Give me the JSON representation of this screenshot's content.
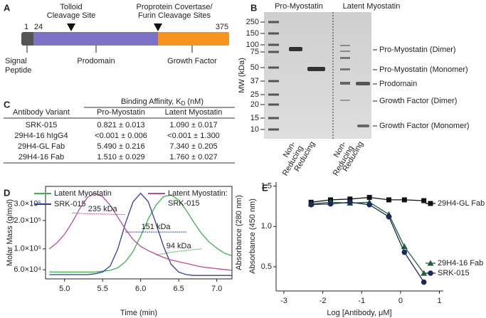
{
  "panel_a": {
    "label": "A",
    "tolloid": [
      "Tolloid",
      "Cleavage Site"
    ],
    "furin": [
      "Proprotein Covertase/",
      "Furin Cleavage Sites"
    ],
    "residues": [
      1,
      24,
      375
    ],
    "domains": [
      [
        "Signal",
        "Peptide"
      ],
      [
        "Prodomain"
      ],
      [
        "Growth Factor"
      ]
    ]
  },
  "panel_b": {
    "label": "B",
    "groups": [
      "Pro-Myostatin",
      "Latent Myostatin"
    ],
    "y_title": "MW (kDa)",
    "ladder": [
      250,
      150,
      100,
      75,
      50,
      37,
      25,
      20,
      15,
      10
    ],
    "band_labels": [
      "Pro-Myostatin (Dimer)",
      "Pro-Myostatin (Monomer)",
      "Prodomain",
      "Growth Factor (Dimer)",
      "Growth Factor (Monomer)"
    ],
    "lanes": [
      [
        "Non-",
        "Reducing"
      ],
      [
        "Reducing"
      ],
      [
        "Non-",
        "Reducing"
      ],
      [
        "Reducing"
      ]
    ]
  },
  "panel_c": {
    "label": "C",
    "caption": {
      "text": "Binding Affinity, K",
      "sub": "D",
      "after": "(nM)"
    },
    "header": [
      "Antibody Variant",
      "Pro-Myostatin",
      "Latent Myostatin"
    ],
    "rows": [
      [
        "SRK-015",
        "0.821 ± 0.013",
        "1.090 ± 0.017"
      ],
      [
        "29H4-16 hIgG4",
        "<0.001 ± 0.006",
        "<0.001 ± 1.300"
      ],
      [
        "29H4-GL Fab",
        "5.490 ± 0.216",
        "7.340 ± 0.205"
      ],
      [
        "29H4-16 Fab",
        "1.510 ± 0.029",
        "1.760 ± 0.027"
      ]
    ]
  },
  "chart_data": [
    {
      "type": "line",
      "panel_label": "D",
      "x_label": "Time (min)",
      "y_label": "Molar Mass (g/mol)",
      "y2_label": "Absorbance (280 nm)",
      "yscale": "log",
      "xlim": [
        4.75,
        7.2
      ],
      "ylim": [
        48000,
        460000
      ],
      "y2lim": [
        0,
        1.08
      ],
      "xticks": [
        {
          "value": 5,
          "label": "5.0"
        },
        5.5,
        {
          "value": 6,
          "label": "6.0"
        },
        6.5,
        {
          "value": 7,
          "label": "7.0"
        }
      ],
      "yticks": [
        {
          "value": 60000,
          "label": "6.0×10⁴"
        },
        {
          "value": 100000,
          "label": "1.0×10⁵"
        },
        {
          "value": 200000,
          "label": "2.0×10⁵"
        },
        {
          "value": 300000,
          "label": "3.0×10⁵"
        }
      ],
      "x": [
        4.8,
        4.9,
        5.0,
        5.1,
        5.2,
        5.3,
        5.4,
        5.5,
        5.6,
        5.7,
        5.8,
        5.9,
        6.0,
        6.1,
        6.2,
        6.3,
        6.4,
        6.5,
        6.6,
        6.7,
        6.8,
        6.9,
        7.0,
        7.1,
        7.2
      ],
      "series": [
        {
          "name": "Latent Myostatin",
          "color": "#3cb54a",
          "axis": "y2",
          "values": [
            0.08,
            0.08,
            0.08,
            0.08,
            0.08,
            0.08,
            0.08,
            0.09,
            0.1,
            0.13,
            0.2,
            0.32,
            0.5,
            0.7,
            0.86,
            0.96,
            0.98,
            0.92,
            0.8,
            0.66,
            0.53,
            0.43,
            0.36,
            0.3,
            0.27
          ],
          "mass": [
            null,
            null,
            null,
            null,
            null,
            null,
            null,
            null,
            null,
            null,
            null,
            null,
            null,
            null,
            86000,
            89000,
            92000,
            94000,
            96000,
            98000,
            100000,
            null,
            null,
            null,
            null
          ],
          "mass_label": "94 kDa"
        },
        {
          "name": "SRK-015",
          "color": "#2b3f9e",
          "axis": "y2",
          "values": [
            0.05,
            0.05,
            0.05,
            0.05,
            0.05,
            0.05,
            0.06,
            0.08,
            0.15,
            0.35,
            0.65,
            0.9,
            1.0,
            0.9,
            0.65,
            0.38,
            0.17,
            0.08,
            0.05,
            0.04,
            0.04,
            0.04,
            0.04,
            0.04,
            0.04
          ],
          "mass": [
            null,
            null,
            null,
            null,
            null,
            null,
            null,
            null,
            null,
            null,
            151000,
            151000,
            151000,
            151000,
            151000,
            151000,
            151000,
            151000,
            151000,
            null,
            null,
            null,
            null,
            null,
            null
          ],
          "mass_label": "151 kDa"
        },
        {
          "name": "Latent Myostatin: SRK-015",
          "color": "#c0479a",
          "axis": "y2",
          "values": [
            0.35,
            0.42,
            0.52,
            0.66,
            0.82,
            0.95,
            1.0,
            0.96,
            0.86,
            0.72,
            0.58,
            0.46,
            0.38,
            0.33,
            0.29,
            0.25,
            0.22,
            0.2,
            0.18,
            0.16,
            0.14,
            0.13,
            0.12,
            0.11,
            0.1
          ],
          "mass": [
            null,
            null,
            null,
            240000,
            238000,
            236000,
            235000,
            234000,
            233000,
            232000,
            231000,
            null,
            null,
            null,
            null,
            null,
            null,
            null,
            null,
            null,
            null,
            null,
            null,
            null,
            null
          ],
          "mass_label": "235 kDa"
        }
      ]
    },
    {
      "type": "line",
      "panel_label": "E",
      "x_label": "Log [Antibody, μM]",
      "y_label": "Absorbance (450 nm)",
      "xlim": [
        -3.2,
        1.1
      ],
      "ylim": [
        0.2,
        1.55
      ],
      "xticks": [
        -3,
        -2,
        -1,
        0,
        1
      ],
      "yticks": [
        0.5,
        {
          "value": 1,
          "label": "1.0"
        },
        1.5
      ],
      "x": [
        -2.3,
        -1.8,
        -1.3,
        -0.8,
        -0.3,
        0.1,
        0.6
      ],
      "series": [
        {
          "name": "29H4-GL Fab",
          "color": "#111111",
          "marker": "square",
          "values": [
            1.3,
            1.33,
            1.34,
            1.36,
            1.33,
            1.33,
            1.32
          ]
        },
        {
          "name": "29H4-16 Fab",
          "color": "#1f5f3a",
          "marker": "triangle",
          "values": [
            1.28,
            1.3,
            1.29,
            1.3,
            1.15,
            0.75,
            0.42
          ]
        },
        {
          "name": "SRK-015",
          "color": "#1a2a5e",
          "marker": "circle",
          "values": [
            1.27,
            1.28,
            1.3,
            1.27,
            1.12,
            0.68,
            0.31
          ]
        }
      ]
    }
  ]
}
